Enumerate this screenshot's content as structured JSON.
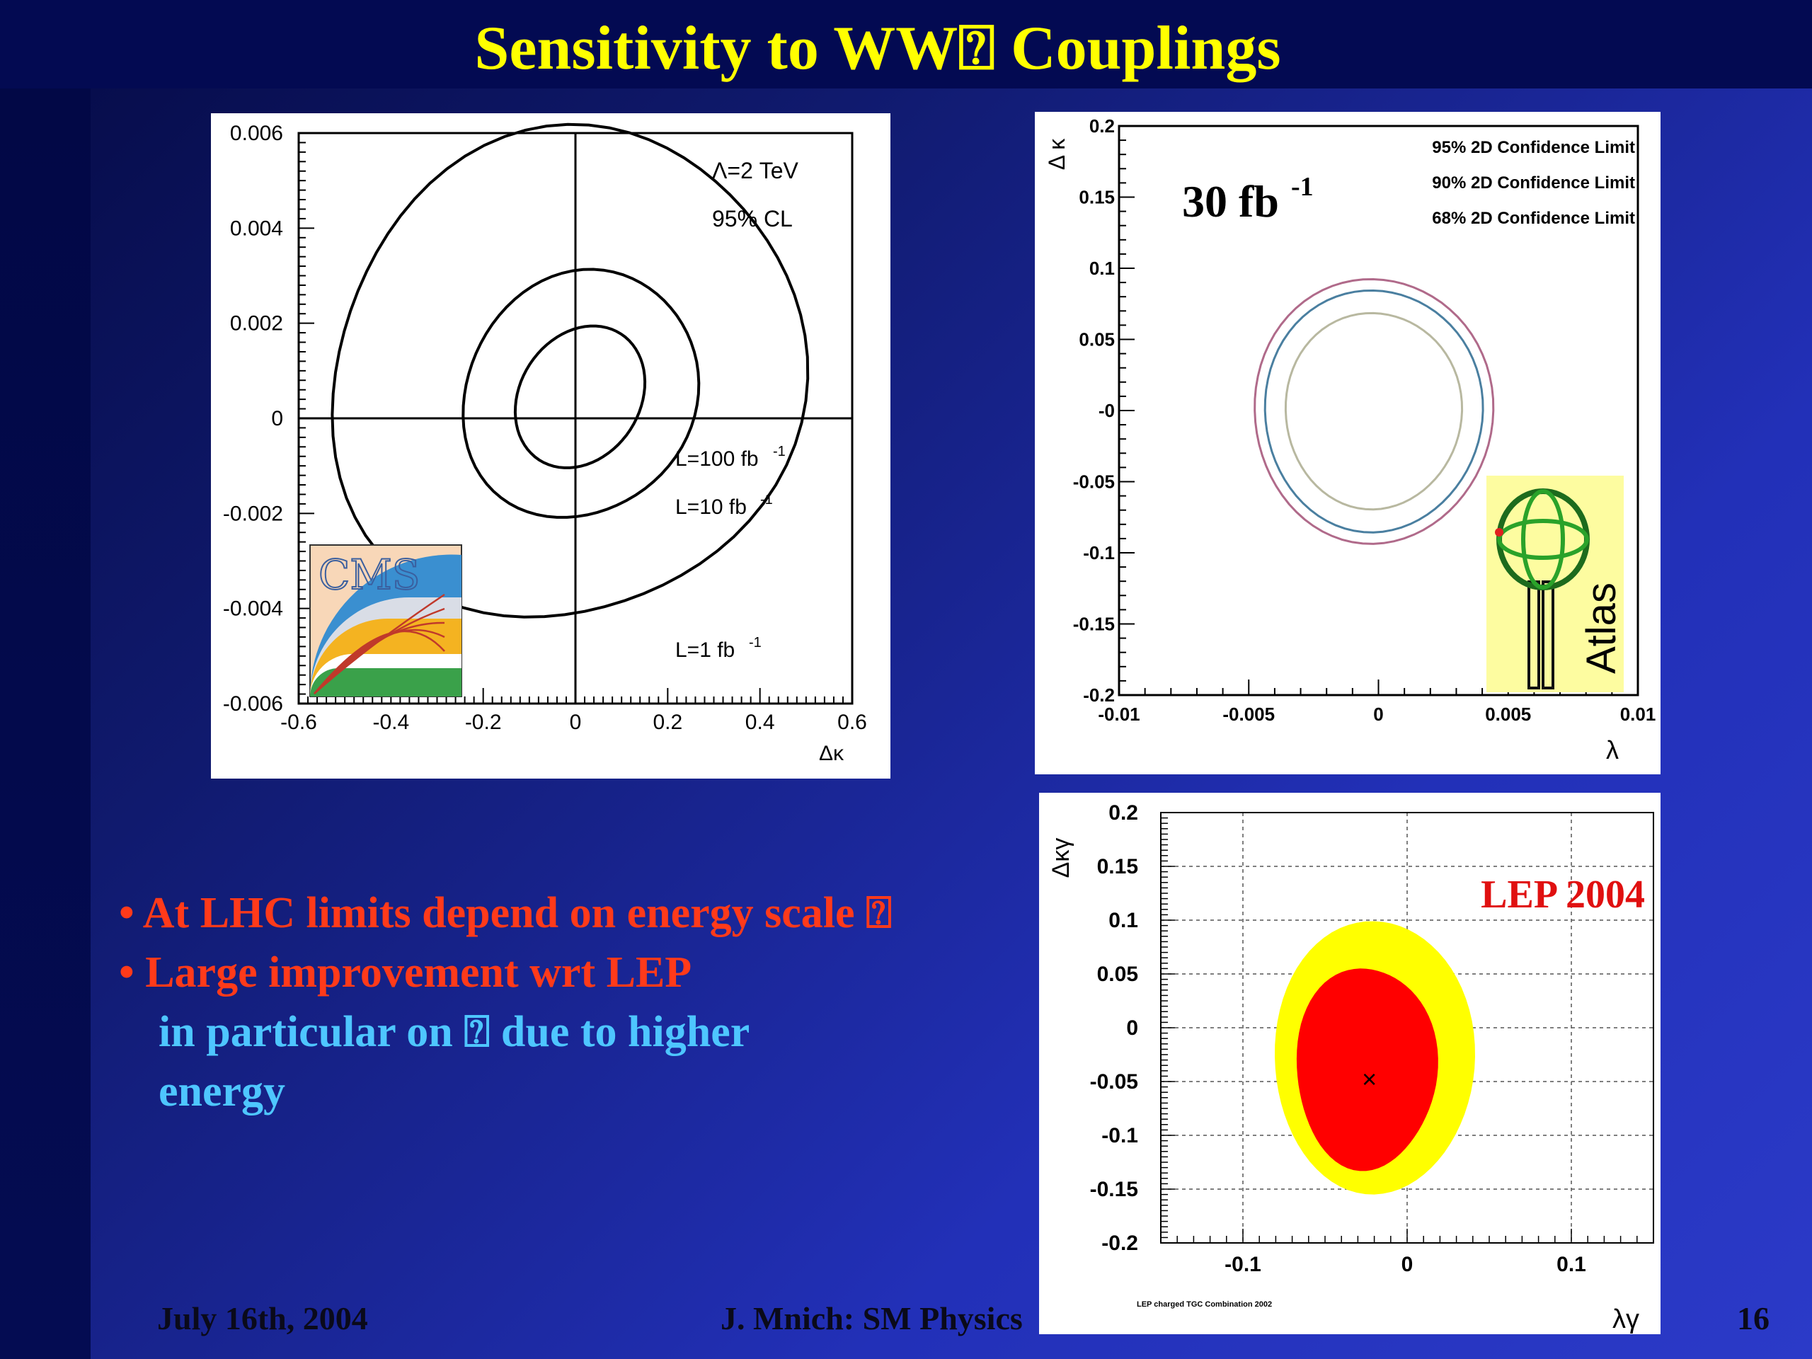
{
  "slide": {
    "title": "Sensitivity to WW⍰ Couplings",
    "bullets": [
      {
        "text": "• At LHC limits depend on energy scale ⍰",
        "color": "#ff3a1a"
      },
      {
        "text": "• Large improvement wrt LEP",
        "color": "#ff3a1a"
      },
      {
        "text": "in particular on ⍰ due to higher",
        "color": "#4ec6ff"
      },
      {
        "text": "energy",
        "color": "#4ec6ff"
      }
    ],
    "footer": {
      "date": "July 16th, 2004",
      "author": "J. Mnich: SM Physics",
      "page": "16"
    }
  },
  "chart_data": [
    {
      "id": "cms",
      "type": "contour",
      "xlabel": "Δκ",
      "ylabel": "",
      "xlim": [
        -0.6,
        0.6
      ],
      "ylim": [
        -0.006,
        0.006
      ],
      "xticks": [
        "-0.6",
        "-0.4",
        "-0.2",
        "0",
        "0.2",
        "0.4",
        "0.6"
      ],
      "yticks": [
        "-0.006",
        "-0.004",
        "-0.002",
        "0",
        "0.002",
        "0.004",
        "0.006"
      ],
      "annotations": [
        "Λ=2 TeV",
        "95% CL"
      ],
      "logo": "CMS",
      "series": [
        {
          "name": "L=100 fb-1",
          "label_main": "L=100 fb",
          "label_sup": "-1",
          "center": [
            0.01,
            0.00045
          ],
          "semi_x": 0.13,
          "semi_y": 0.00158
        },
        {
          "name": "L=10 fb-1",
          "label_main": "L=10 fb",
          "label_sup": "-1",
          "center": [
            0.01,
            0.0005
          ],
          "semi_x": 0.245,
          "semi_y": 0.0027
        },
        {
          "name": "L=1 fb-1",
          "label_main": "L=1 fb",
          "label_sup": "-1",
          "center": [
            -0.02,
            0.0009
          ],
          "semi_x": 0.5,
          "semi_y": 0.0053
        }
      ]
    },
    {
      "id": "atlas",
      "type": "contour",
      "xlabel": "λ",
      "ylabel": "Δ κ",
      "xlim": [
        -0.01,
        0.01
      ],
      "ylim": [
        -0.2,
        0.2
      ],
      "xticks": [
        "-0.01",
        "-0.005",
        "0",
        "0.005",
        "0.01"
      ],
      "yticks": [
        "-0.2",
        "-0.15",
        "-0.1",
        "-0.05",
        "-0",
        "0.05",
        "0.1",
        "0.15",
        "0.2"
      ],
      "annotation_main": "30 fb",
      "annotation_sup": "-1",
      "logo": "Atlas",
      "series": [
        {
          "name": "95% 2D Confidence Limit",
          "color": "#b06a8a",
          "center": [
            -0.0002,
            0.0
          ],
          "semi_x": 0.0046,
          "semi_y": 0.093
        },
        {
          "name": "90% 2D Confidence Limit",
          "color": "#4a7fa0",
          "center": [
            -0.0002,
            0.0
          ],
          "semi_x": 0.0042,
          "semi_y": 0.085
        },
        {
          "name": "68% 2D Confidence Limit",
          "color": "#b8b8a0",
          "center": [
            -0.0002,
            0.0
          ],
          "semi_x": 0.0034,
          "semi_y": 0.069
        }
      ]
    },
    {
      "id": "lep",
      "type": "contour",
      "xlabel": "λγ",
      "ylabel": "Δκγ",
      "xlim": [
        -0.15,
        0.15
      ],
      "ylim": [
        -0.2,
        0.2
      ],
      "xticks": [
        "-0.1",
        "0",
        "0.1"
      ],
      "yticks": [
        "-0.2",
        "-0.15",
        "-0.1",
        "-0.05",
        "0",
        "0.05",
        "0.1",
        "0.15",
        "0.2"
      ],
      "title": "LEP 2004",
      "footnote": "LEP charged TGC Combination 2002",
      "grid": true,
      "best_fit": [
        -0.023,
        -0.048
      ],
      "series": [
        {
          "name": "outer region",
          "color": "#ffff00",
          "center": [
            -0.02,
            -0.027
          ],
          "semi_x": 0.061,
          "semi_y": 0.127
        },
        {
          "name": "inner region",
          "color": "#ff0000",
          "center": [
            -0.025,
            -0.037
          ],
          "semi_x": 0.043,
          "semi_y": 0.094
        }
      ]
    }
  ]
}
